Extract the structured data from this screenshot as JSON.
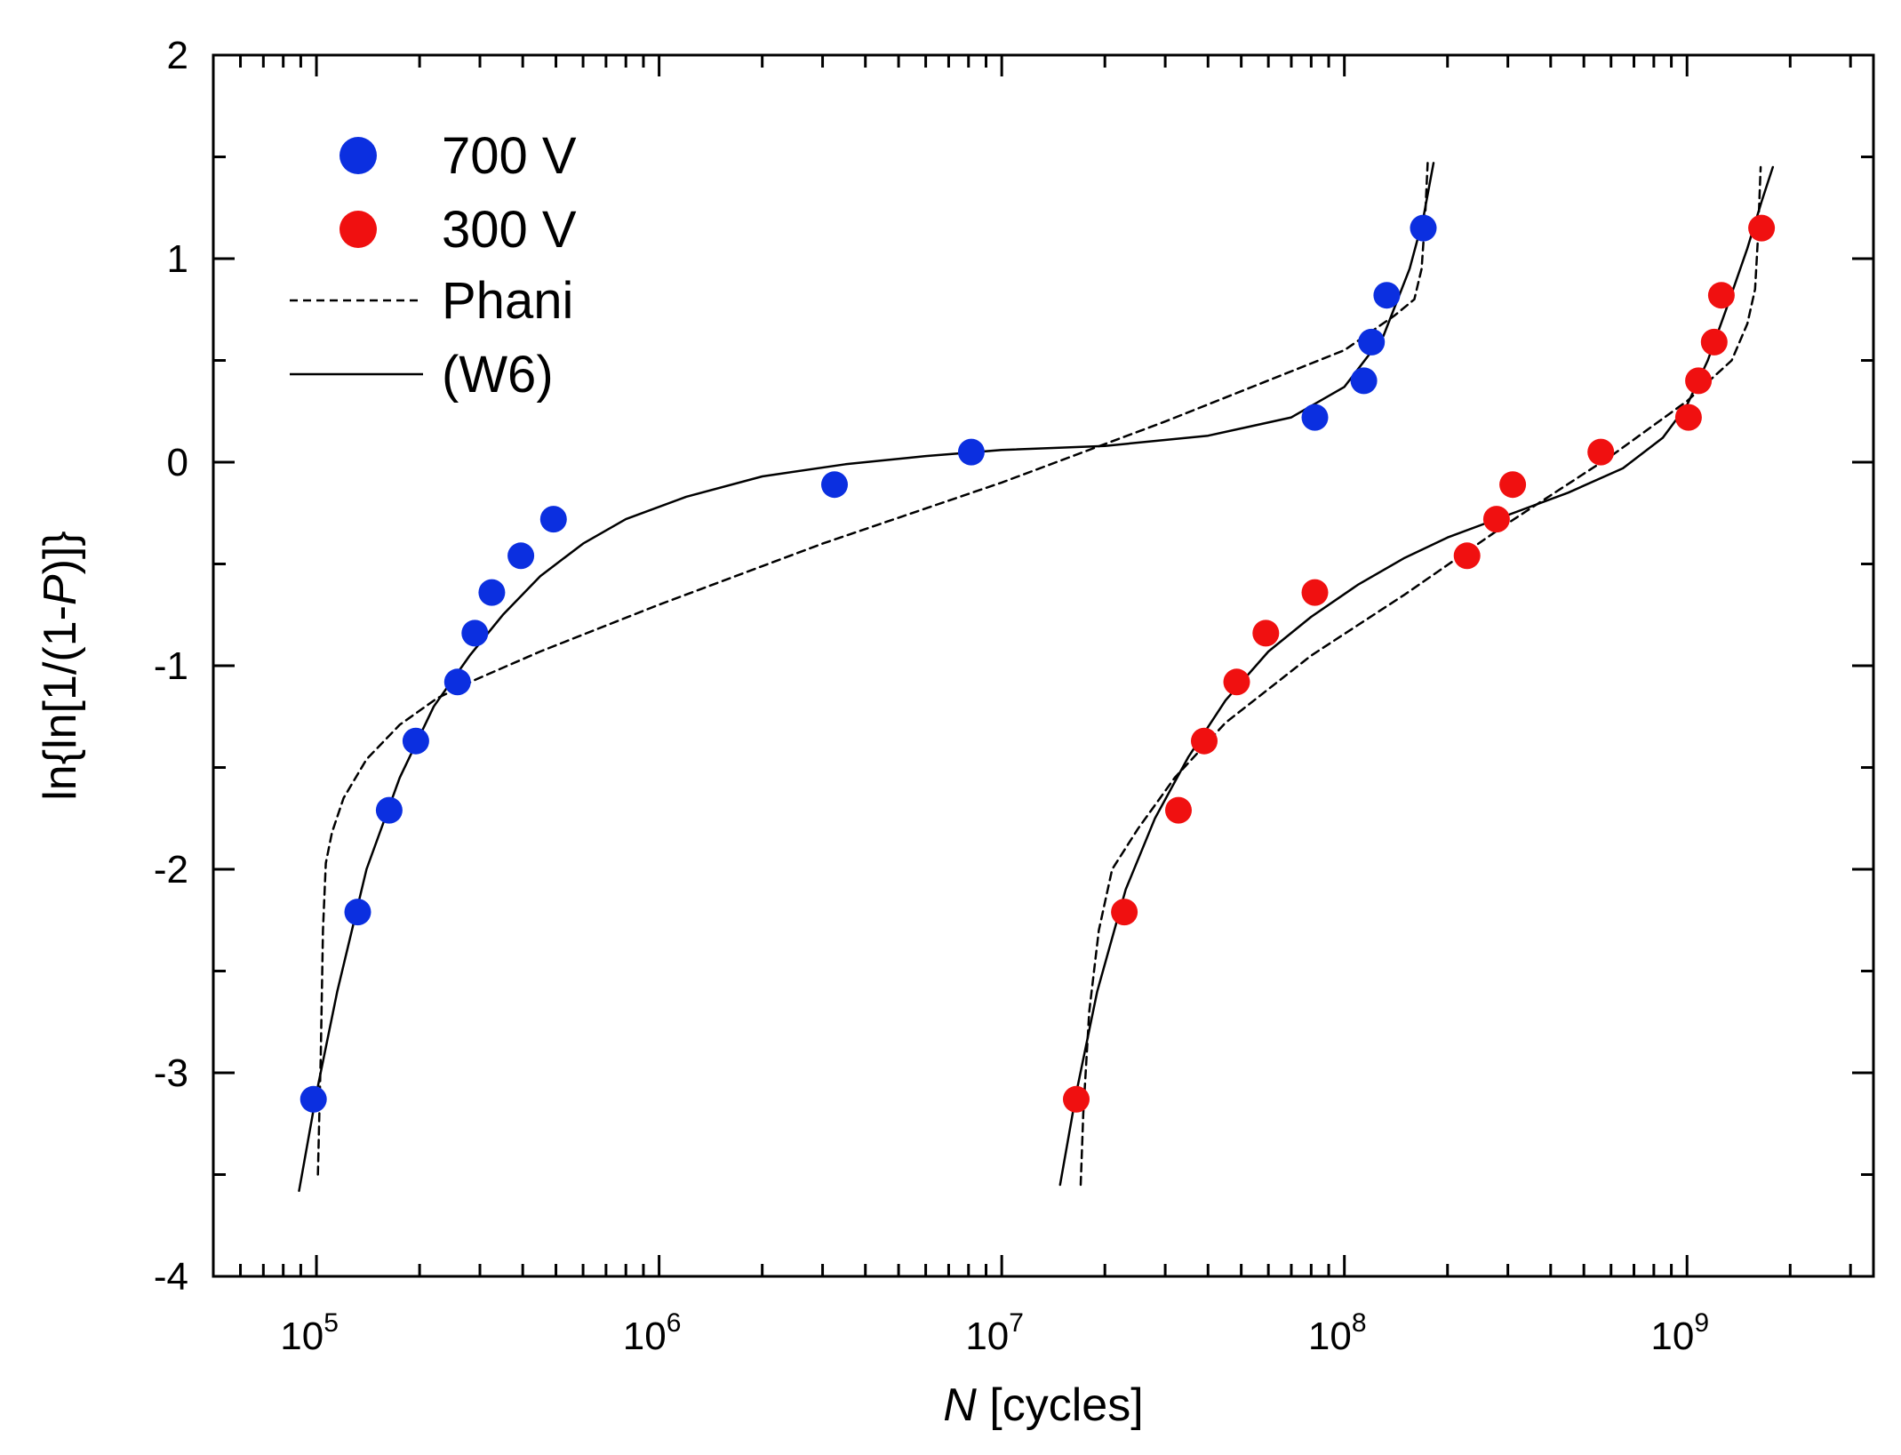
{
  "chart_data": {
    "type": "scatter",
    "xscale": "log",
    "xlim": [
      50000,
      3500000000
    ],
    "ylim": [
      -4,
      2
    ],
    "xlabel_italic": "N",
    "xlabel_rest": " [cycles]",
    "ylabel_pre": "ln{ln[1/(1-",
    "ylabel_italic": "P",
    "ylabel_post": ")]}",
    "yticks": [
      "2",
      "1",
      "0",
      "-1",
      "-2",
      "-3",
      "-4"
    ],
    "ytick_values": [
      2,
      1,
      0,
      -1,
      -2,
      -3,
      -4
    ],
    "xticks": [
      {
        "base": "10",
        "exp": "5",
        "value": 100000
      },
      {
        "base": "10",
        "exp": "6",
        "value": 1000000
      },
      {
        "base": "10",
        "exp": "7",
        "value": 10000000
      },
      {
        "base": "10",
        "exp": "8",
        "value": 100000000
      },
      {
        "base": "10",
        "exp": "9",
        "value": 1000000000
      }
    ],
    "legend": {
      "position": "top-left",
      "entries": [
        {
          "label": "700 V",
          "kind": "marker",
          "color": "#0b2fe0"
        },
        {
          "label": "300 V",
          "kind": "marker",
          "color": "#f01010"
        },
        {
          "label": "Phani",
          "kind": "dashed-line",
          "color": "#000000"
        },
        {
          "label": "(W6)",
          "kind": "solid-line",
          "color": "#000000"
        }
      ]
    },
    "series": [
      {
        "name": "700 V",
        "color": "#0b2fe0",
        "points": [
          [
            98000,
            -3.13
          ],
          [
            132000,
            -2.21
          ],
          [
            163000,
            -1.71
          ],
          [
            195000,
            -1.37
          ],
          [
            258000,
            -1.08
          ],
          [
            290000,
            -0.84
          ],
          [
            325000,
            -0.64
          ],
          [
            395000,
            -0.46
          ],
          [
            492000,
            -0.28
          ],
          [
            3250000,
            -0.11
          ],
          [
            8150000,
            0.05
          ],
          [
            82000000,
            0.22
          ],
          [
            114000000,
            0.4
          ],
          [
            120000000,
            0.59
          ],
          [
            133000000,
            0.82
          ],
          [
            170000000,
            1.15
          ]
        ]
      },
      {
        "name": "300 V",
        "color": "#f01010",
        "points": [
          [
            16500000,
            -3.13
          ],
          [
            22800000,
            -2.21
          ],
          [
            32800000,
            -1.71
          ],
          [
            39000000,
            -1.37
          ],
          [
            48500000,
            -1.08
          ],
          [
            59000000,
            -0.84
          ],
          [
            82000000,
            -0.64
          ],
          [
            228000000,
            -0.46
          ],
          [
            278000000,
            -0.28
          ],
          [
            310000000,
            -0.11
          ],
          [
            560000000,
            0.05
          ],
          [
            1010000000,
            0.22
          ],
          [
            1080000000,
            0.4
          ],
          [
            1200000000,
            0.59
          ],
          [
            1260000000,
            0.82
          ],
          [
            1650000000,
            1.15
          ]
        ]
      }
    ],
    "curves": [
      {
        "name": "Phani",
        "group": "700 V",
        "style": "dashed",
        "points": [
          [
            101000,
            -3.5
          ],
          [
            103000,
            -2.9
          ],
          [
            104500,
            -2.3
          ],
          [
            106500,
            -1.97
          ],
          [
            111000,
            -1.82
          ],
          [
            120000,
            -1.65
          ],
          [
            140000,
            -1.46
          ],
          [
            175000,
            -1.29
          ],
          [
            225000,
            -1.16
          ],
          [
            290000,
            -1.07
          ],
          [
            450000,
            -0.93
          ],
          [
            1000000,
            -0.7
          ],
          [
            3000000,
            -0.4
          ],
          [
            10000000,
            -0.1
          ],
          [
            30000000,
            0.2
          ],
          [
            100000000,
            0.55
          ],
          [
            140000000,
            0.72
          ],
          [
            160000000,
            0.8
          ],
          [
            168000000,
            0.95
          ],
          [
            172000000,
            1.2
          ],
          [
            175000000,
            1.47
          ]
        ]
      },
      {
        "name": "(W6)",
        "group": "700 V",
        "style": "solid",
        "points": [
          [
            89000,
            -3.58
          ],
          [
            100000,
            -3.1
          ],
          [
            115000,
            -2.6
          ],
          [
            140000,
            -2.0
          ],
          [
            175000,
            -1.55
          ],
          [
            220000,
            -1.2
          ],
          [
            280000,
            -0.95
          ],
          [
            350000,
            -0.75
          ],
          [
            450000,
            -0.56
          ],
          [
            600000,
            -0.4
          ],
          [
            800000,
            -0.28
          ],
          [
            1200000,
            -0.17
          ],
          [
            2000000,
            -0.07
          ],
          [
            3500000,
            -0.01
          ],
          [
            6000000,
            0.03
          ],
          [
            10000000,
            0.06
          ],
          [
            20000000,
            0.08
          ],
          [
            40000000,
            0.13
          ],
          [
            70000000,
            0.22
          ],
          [
            100000000,
            0.37
          ],
          [
            130000000,
            0.62
          ],
          [
            155000000,
            0.95
          ],
          [
            170000000,
            1.2
          ],
          [
            182000000,
            1.47
          ]
        ]
      },
      {
        "name": "Phani",
        "group": "300 V",
        "style": "dashed",
        "points": [
          [
            17000000,
            -3.55
          ],
          [
            17300000,
            -3.2
          ],
          [
            18000000,
            -2.7
          ],
          [
            19200000,
            -2.3
          ],
          [
            21000000,
            -2.0
          ],
          [
            25000000,
            -1.8
          ],
          [
            32000000,
            -1.55
          ],
          [
            45000000,
            -1.28
          ],
          [
            80000000,
            -0.95
          ],
          [
            150000000,
            -0.65
          ],
          [
            300000000,
            -0.3
          ],
          [
            600000000,
            0.03
          ],
          [
            1000000000,
            0.3
          ],
          [
            1350000000,
            0.5
          ],
          [
            1500000000,
            0.68
          ],
          [
            1580000000,
            0.85
          ],
          [
            1610000000,
            1.1
          ],
          [
            1640000000,
            1.45
          ]
        ]
      },
      {
        "name": "(W6)",
        "group": "300 V",
        "style": "solid",
        "points": [
          [
            14800000,
            -3.55
          ],
          [
            16500000,
            -3.1
          ],
          [
            19000000,
            -2.6
          ],
          [
            23000000,
            -2.1
          ],
          [
            28000000,
            -1.75
          ],
          [
            35000000,
            -1.45
          ],
          [
            45000000,
            -1.17
          ],
          [
            60000000,
            -0.93
          ],
          [
            80000000,
            -0.76
          ],
          [
            110000000,
            -0.6
          ],
          [
            150000000,
            -0.47
          ],
          [
            200000000,
            -0.37
          ],
          [
            300000000,
            -0.26
          ],
          [
            450000000,
            -0.15
          ],
          [
            650000000,
            -0.03
          ],
          [
            850000000,
            0.12
          ],
          [
            1000000000,
            0.28
          ],
          [
            1150000000,
            0.5
          ],
          [
            1300000000,
            0.75
          ],
          [
            1500000000,
            1.05
          ],
          [
            1650000000,
            1.28
          ],
          [
            1780000000,
            1.45
          ]
        ]
      }
    ]
  }
}
